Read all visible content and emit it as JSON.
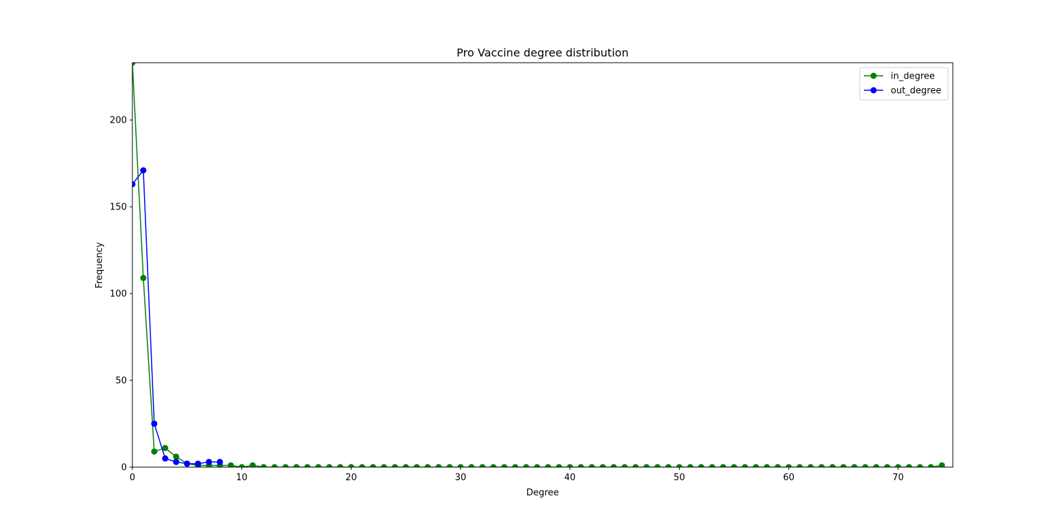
{
  "chart_data": {
    "type": "line",
    "title": "Pro Vaccine degree distribution",
    "xlabel": "Degree",
    "ylabel": "Frequency",
    "xlim": [
      0,
      75
    ],
    "ylim": [
      0,
      233
    ],
    "xticks": [
      0,
      10,
      20,
      30,
      40,
      50,
      60,
      70
    ],
    "yticks": [
      0,
      50,
      100,
      150,
      200
    ],
    "grid": false,
    "legend_position": "top-right",
    "series": [
      {
        "name": "in_degree",
        "color": "#008000",
        "marker": "circle",
        "x": [
          0,
          1,
          2,
          3,
          4,
          5,
          6,
          7,
          8,
          9,
          10,
          11,
          12,
          13,
          14,
          15,
          16,
          17,
          18,
          19,
          20,
          21,
          22,
          23,
          24,
          25,
          26,
          27,
          28,
          29,
          30,
          31,
          32,
          33,
          34,
          35,
          36,
          37,
          38,
          39,
          40,
          41,
          42,
          43,
          44,
          45,
          46,
          47,
          48,
          49,
          50,
          51,
          52,
          53,
          54,
          55,
          56,
          57,
          58,
          59,
          60,
          61,
          62,
          63,
          64,
          65,
          66,
          67,
          68,
          69,
          70,
          71,
          72,
          73,
          74
        ],
        "values": [
          233,
          109,
          9,
          11,
          6,
          2,
          1,
          1,
          1,
          1,
          0,
          1,
          0,
          0,
          0,
          0,
          0,
          0,
          0,
          0,
          0,
          0,
          0,
          0,
          0,
          0,
          0,
          0,
          0,
          0,
          0,
          0,
          0,
          0,
          0,
          0,
          0,
          0,
          0,
          0,
          0,
          0,
          0,
          0,
          0,
          0,
          0,
          0,
          0,
          0,
          0,
          0,
          0,
          0,
          0,
          0,
          0,
          0,
          0,
          0,
          0,
          0,
          0,
          0,
          0,
          0,
          0,
          0,
          0,
          0,
          0,
          0,
          0,
          0,
          1
        ]
      },
      {
        "name": "out_degree",
        "color": "#0000ff",
        "marker": "circle",
        "x": [
          0,
          1,
          2,
          3,
          4,
          5,
          6,
          7,
          8
        ],
        "values": [
          163,
          171,
          25,
          5,
          3,
          2,
          2,
          3,
          3
        ]
      }
    ]
  }
}
